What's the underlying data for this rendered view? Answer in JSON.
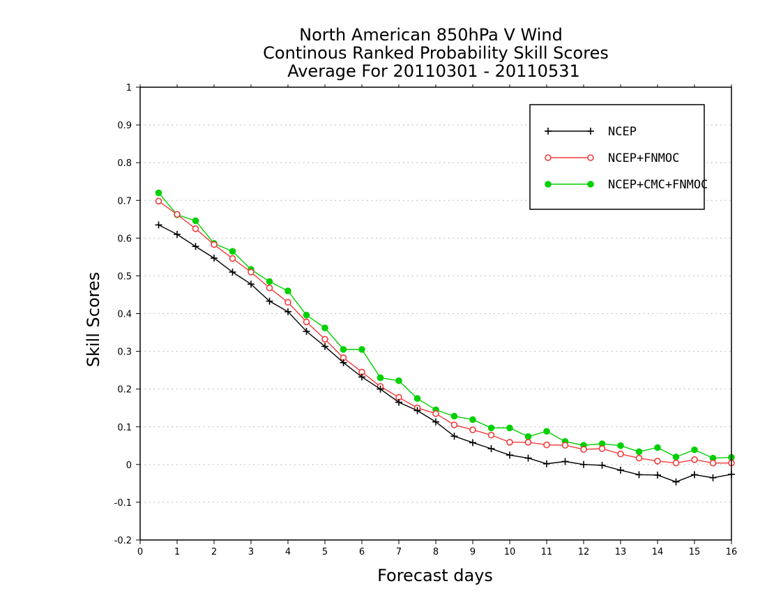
{
  "chart_data": {
    "type": "line",
    "title": [
      "North American 850hPa V Wind",
      "Continous Ranked Probability Skill Scores",
      "Average For 20110301 - 20110531"
    ],
    "xlabel": "Forecast days",
    "ylabel": "Skill Scores",
    "xlim": [
      0,
      16
    ],
    "ylim": [
      -0.2,
      1
    ],
    "xticks": [
      "0",
      "1",
      "2",
      "3",
      "4",
      "5",
      "6",
      "7",
      "8",
      "9",
      "10",
      "11",
      "12",
      "13",
      "14",
      "15",
      "16"
    ],
    "yticks": [
      "-0.2",
      "-0.1",
      "0",
      "0.1",
      "0.2",
      "0.3",
      "0.4",
      "0.5",
      "0.6",
      "0.7",
      "0.8",
      "0.9",
      "1"
    ],
    "grid": "horizontal dotted",
    "legend_position": "top-right",
    "x": [
      0.5,
      1,
      1.5,
      2,
      2.5,
      3,
      3.5,
      4,
      4.5,
      5,
      5.5,
      6,
      6.5,
      7,
      7.5,
      8,
      8.5,
      9,
      9.5,
      10,
      10.5,
      11,
      11.5,
      12,
      12.5,
      13,
      13.5,
      14,
      14.5,
      15,
      15.5,
      16
    ],
    "series": [
      {
        "name": "NCEP",
        "color": "#000000",
        "marker": "plus",
        "values": [
          0.635,
          0.61,
          0.578,
          0.547,
          0.51,
          0.478,
          0.433,
          0.405,
          0.353,
          0.313,
          0.27,
          0.232,
          0.2,
          0.165,
          0.143,
          0.113,
          0.075,
          0.058,
          0.042,
          0.025,
          0.017,
          0.002,
          0.008,
          0.0,
          -0.002,
          -0.015,
          -0.027,
          -0.028,
          -0.046,
          -0.027,
          -0.035,
          -0.026
        ]
      },
      {
        "name": "NCEP+FNMOC",
        "color": "#f03c3c",
        "marker": "open-circle",
        "values": [
          0.698,
          0.663,
          0.625,
          0.583,
          0.546,
          0.51,
          0.468,
          0.43,
          0.378,
          0.332,
          0.283,
          0.245,
          0.207,
          0.178,
          0.15,
          0.135,
          0.105,
          0.092,
          0.078,
          0.059,
          0.059,
          0.052,
          0.051,
          0.04,
          0.042,
          0.028,
          0.017,
          0.009,
          0.004,
          0.013,
          0.004,
          0.004
        ]
      },
      {
        "name": "NCEP+CMC+FNMOC",
        "color": "#00d000",
        "marker": "filled-circle",
        "values": [
          0.72,
          0.662,
          0.646,
          0.586,
          0.565,
          0.517,
          0.485,
          0.46,
          0.396,
          0.362,
          0.305,
          0.305,
          0.23,
          0.222,
          0.175,
          0.145,
          0.128,
          0.119,
          0.097,
          0.097,
          0.074,
          0.088,
          0.061,
          0.051,
          0.055,
          0.05,
          0.034,
          0.045,
          0.02,
          0.039,
          0.017,
          0.019
        ]
      }
    ]
  }
}
